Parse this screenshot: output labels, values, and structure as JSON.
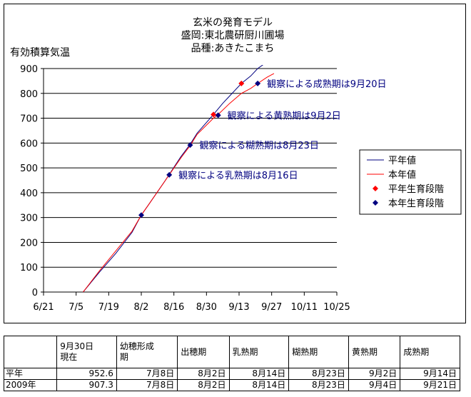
{
  "chart_data": {
    "type": "line",
    "title": [
      "玄米の発育モデル",
      "盛岡:東北農研厨川圃場",
      "品種:あきたこまち"
    ],
    "ylabel": "有効積算気温",
    "ylim": [
      0,
      900
    ],
    "yticks": [
      0,
      100,
      200,
      300,
      400,
      500,
      600,
      700,
      800,
      900
    ],
    "xticks": [
      "6/21",
      "7/5",
      "7/19",
      "8/2",
      "8/16",
      "8/30",
      "9/13",
      "9/27",
      "10/11",
      "10/25"
    ],
    "xlim_days": [
      0,
      126
    ],
    "grid": "horizontal",
    "legend_position": "right",
    "series": [
      {
        "name": "平年値",
        "color": "#000080",
        "kind": "line",
        "x": [
          "7/8",
          "7/15",
          "7/22",
          "7/29",
          "8/2",
          "8/5",
          "8/12",
          "8/19",
          "8/23",
          "8/26",
          "9/2",
          "9/6",
          "9/9",
          "9/14",
          "9/18",
          "9/21",
          "9/24"
        ],
        "y": [
          0,
          80,
          155,
          240,
          310,
          350,
          445,
          545,
          595,
          640,
          715,
          760,
          790,
          840,
          870,
          900,
          920
        ]
      },
      {
        "name": "本年値",
        "color": "#ff0000",
        "kind": "line",
        "x": [
          "7/8",
          "7/15",
          "7/22",
          "7/29",
          "8/2",
          "8/5",
          "8/12",
          "8/19",
          "8/23",
          "8/26",
          "9/2",
          "9/4",
          "9/9",
          "9/14",
          "9/18",
          "9/21",
          "9/25",
          "9/28"
        ],
        "y": [
          0,
          85,
          165,
          245,
          310,
          350,
          445,
          540,
          590,
          635,
          700,
          715,
          760,
          800,
          820,
          840,
          865,
          880
        ]
      },
      {
        "name": "平年生育段階",
        "color": "#ff0000",
        "kind": "markers",
        "x": [
          "9/2",
          "9/14"
        ],
        "y": [
          715,
          840
        ]
      },
      {
        "name": "本年生育段階",
        "color": "#000080",
        "kind": "markers",
        "x": [
          "8/2",
          "8/14",
          "8/23",
          "9/4",
          "9/21"
        ],
        "y": [
          310,
          472,
          592,
          712,
          840
        ]
      }
    ],
    "annotations": [
      {
        "text": "観察による成熟期は9月20日",
        "at": [
          "9/21",
          840
        ]
      },
      {
        "text": "観察による黄熟期は9月2日",
        "at": [
          "9/4",
          712
        ]
      },
      {
        "text": "観察による糊熟期は8月23日",
        "at": [
          "8/23",
          592
        ]
      },
      {
        "text": "観察による乳熟期は8月16日",
        "at": [
          "8/14",
          472
        ]
      }
    ]
  },
  "table": {
    "headers": [
      "",
      "9月30日\n現在",
      "幼穂形成\n期",
      "出穂期",
      "乳熟期",
      "糊熟期",
      "黄熟期",
      "成熟期"
    ],
    "rows": [
      [
        "平年",
        "952.6",
        "7月8日",
        "8月2日",
        "8月14日",
        "8月23日",
        "9月2日",
        "9月14日"
      ],
      [
        "2009年",
        "907.3",
        "7月8日",
        "8月2日",
        "8月14日",
        "8月23日",
        "9月4日",
        "9月21日"
      ]
    ]
  }
}
